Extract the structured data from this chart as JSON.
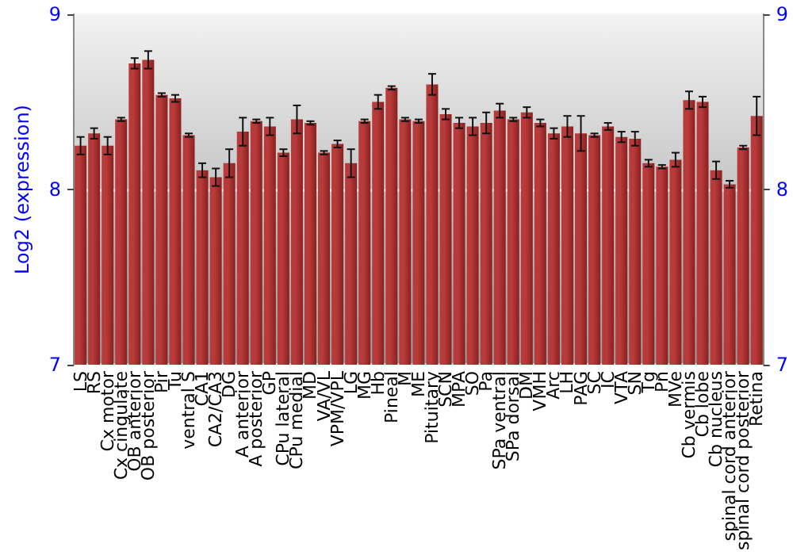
{
  "chart_data": {
    "type": "bar",
    "ylabel": "Log2 (expression)",
    "categories": [
      "LS",
      "RS",
      "Cx motor",
      "Cx cingulate",
      "OB anterior",
      "OB posterior",
      "Pir",
      "Tu",
      "ventral S",
      "CA1",
      "CA2/CA3",
      "DG",
      "A anterior",
      "A posterior",
      "GP",
      "CPu lateral",
      "CPu medial",
      "MD",
      "VA/VL",
      "VPM/VPL",
      "LG",
      "MG",
      "Hb",
      "Pineal",
      "M",
      "ME",
      "Pituitary",
      "SCN",
      "MPA",
      "SO",
      "Pa",
      "SPa ventral",
      "SPa dorsal",
      "DM",
      "VMH",
      "Arc",
      "LH",
      "PAG",
      "SC",
      "IC",
      "VTA",
      "SN",
      "Tg",
      "Pn",
      "MVe",
      "Cb vermis",
      "Cb lobe",
      "Cb nucleus",
      "spinal cord anterior",
      "spinal cord posterior",
      "Retina"
    ],
    "values": [
      8.25,
      8.32,
      8.25,
      8.4,
      8.72,
      8.74,
      8.54,
      8.52,
      8.31,
      8.11,
      8.07,
      8.15,
      8.33,
      8.39,
      8.36,
      8.21,
      8.4,
      8.38,
      8.21,
      8.26,
      8.15,
      8.39,
      8.5,
      8.58,
      8.4,
      8.39,
      8.6,
      8.43,
      8.38,
      8.36,
      8.38,
      8.45,
      8.4,
      8.44,
      8.38,
      8.32,
      8.36,
      8.32,
      8.31,
      8.36,
      8.3,
      8.29,
      8.15,
      8.13,
      8.17,
      8.51,
      8.5,
      8.11,
      8.03,
      8.24,
      8.42
    ],
    "errors": [
      0.05,
      0.03,
      0.05,
      0.01,
      0.03,
      0.05,
      0.01,
      0.02,
      0.01,
      0.04,
      0.05,
      0.08,
      0.08,
      0.01,
      0.05,
      0.02,
      0.08,
      0.01,
      0.01,
      0.02,
      0.08,
      0.01,
      0.04,
      0.01,
      0.01,
      0.01,
      0.06,
      0.03,
      0.03,
      0.05,
      0.06,
      0.04,
      0.01,
      0.03,
      0.02,
      0.03,
      0.06,
      0.1,
      0.01,
      0.02,
      0.03,
      0.04,
      0.02,
      0.01,
      0.04,
      0.05,
      0.03,
      0.05,
      0.02,
      0.01,
      0.11
    ],
    "color": "#b83a3a",
    "ylim": [
      7,
      9
    ],
    "yticks": [
      7,
      8,
      9
    ],
    "y2lim": [
      7,
      9
    ],
    "y2ticks": [
      7,
      8,
      9
    ],
    "grid": "y"
  }
}
